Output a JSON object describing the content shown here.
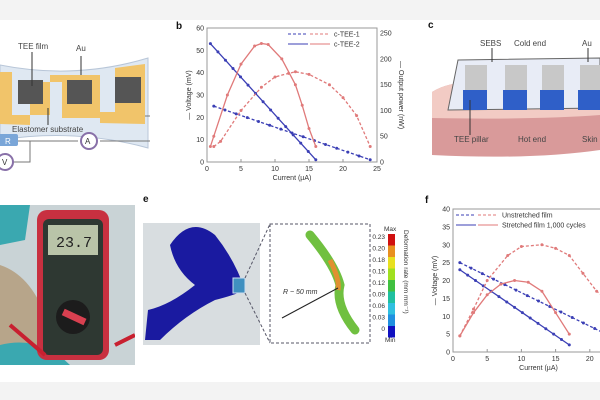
{
  "panels": {
    "a": {
      "labels": {
        "film": "TEE film",
        "au": "Au",
        "substrate": "Elastomer substrate",
        "r": "R",
        "a": "A",
        "v": "V"
      }
    },
    "b": {
      "letter": "b"
    },
    "c": {
      "letter": "c",
      "labels": {
        "sebs": "SEBS",
        "cold": "Cold end",
        "au": "Au",
        "pillar": "TEE pillar",
        "hot": "Hot end",
        "skin": "Skin"
      }
    },
    "d": {
      "display": "23.7"
    },
    "e": {
      "letter": "e",
      "radius": "R ~ 50 mm",
      "colorbar": {
        "max": "Max",
        "min": "Min",
        "title": "Deformation rate (mm mm⁻¹)",
        "ticks": [
          "0.23",
          "0.20",
          "0.18",
          "0.15",
          "0.12",
          "0.09",
          "0.06",
          "0.03",
          "0"
        ],
        "colors": [
          "#d01010",
          "#e89020",
          "#e8e020",
          "#a0e020",
          "#40c040",
          "#20c0a0",
          "#30c0e0",
          "#2090e0",
          "#1010c0"
        ]
      }
    },
    "f": {
      "letter": "f"
    }
  },
  "chart_data": [
    {
      "type": "line",
      "panel": "b",
      "xlabel": "Current (µA)",
      "ylabel": "— Voltage (mV)",
      "y2label": "— Output power (nW)",
      "xlim": [
        0,
        25
      ],
      "ylim": [
        0,
        60
      ],
      "y2lim": [
        0,
        260
      ],
      "xticks": [
        0,
        5,
        10,
        15,
        20,
        25
      ],
      "yticks": [
        0,
        10,
        20,
        30,
        40,
        50,
        60
      ],
      "y2ticks": [
        0,
        50,
        100,
        150,
        200,
        250
      ],
      "legend": "top-right",
      "legend_entries": [
        "c-TEE-1",
        "c-TEE-2"
      ],
      "series": [
        {
          "name": "c-TEE-1",
          "kind": "voltage",
          "axis": "left",
          "color": "#3b3fb5",
          "dash": true,
          "x": [
            1,
            24
          ],
          "y": [
            25,
            1
          ]
        },
        {
          "name": "c-TEE-2",
          "kind": "voltage",
          "axis": "left",
          "color": "#3b3fb5",
          "dash": false,
          "x": [
            0.5,
            16
          ],
          "y": [
            53,
            1
          ]
        },
        {
          "name": "c-TEE-1",
          "kind": "power",
          "axis": "right",
          "color": "#e07a7a",
          "dash": true,
          "x": [
            1,
            2,
            5,
            8,
            10,
            12,
            13,
            15,
            18,
            20,
            22,
            24
          ],
          "y": [
            30,
            40,
            100,
            145,
            165,
            172,
            175,
            170,
            150,
            125,
            90,
            30
          ]
        },
        {
          "name": "c-TEE-2",
          "kind": "power",
          "axis": "right",
          "color": "#e07a7a",
          "dash": false,
          "x": [
            0.5,
            1,
            3,
            5,
            7,
            8,
            9,
            11,
            13,
            14,
            15,
            16
          ],
          "y": [
            30,
            50,
            130,
            190,
            225,
            230,
            228,
            200,
            150,
            110,
            65,
            30
          ]
        }
      ]
    },
    {
      "type": "line",
      "panel": "f",
      "xlabel": "Current (µA)",
      "ylabel": "— Voltage (mV)",
      "xlim": [
        0,
        25
      ],
      "ylim": [
        0,
        40
      ],
      "xticks": [
        0,
        5,
        10,
        15,
        20
      ],
      "yticks": [
        0,
        5,
        10,
        15,
        20,
        25,
        30,
        35,
        40
      ],
      "legend": "top",
      "legend_entries": [
        "Unstretched film",
        "Stretched film 1,000 cycles"
      ],
      "series": [
        {
          "name": "Unstretched film",
          "kind": "voltage",
          "color": "#3b3fb5",
          "dash": true,
          "x": [
            1,
            24
          ],
          "y": [
            25,
            3.5
          ]
        },
        {
          "name": "Stretched film 1,000 cycles",
          "kind": "voltage",
          "color": "#3b3fb5",
          "dash": false,
          "x": [
            1,
            17
          ],
          "y": [
            23,
            2
          ]
        },
        {
          "name": "Unstretched film",
          "kind": "power",
          "color": "#e07a7a",
          "dash": true,
          "x": [
            1,
            3,
            5,
            8,
            10,
            13,
            15,
            17,
            19,
            21,
            23,
            24
          ],
          "y": [
            4.5,
            12,
            20,
            27,
            29.5,
            30,
            29,
            27,
            22,
            17,
            14,
            12
          ]
        },
        {
          "name": "Stretched film 1,000 cycles",
          "kind": "power",
          "color": "#e07a7a",
          "dash": false,
          "x": [
            1,
            3,
            5,
            7,
            9,
            11,
            13,
            15,
            17
          ],
          "y": [
            4.5,
            11,
            16,
            19,
            20,
            19.5,
            17,
            11,
            5
          ]
        }
      ]
    }
  ]
}
